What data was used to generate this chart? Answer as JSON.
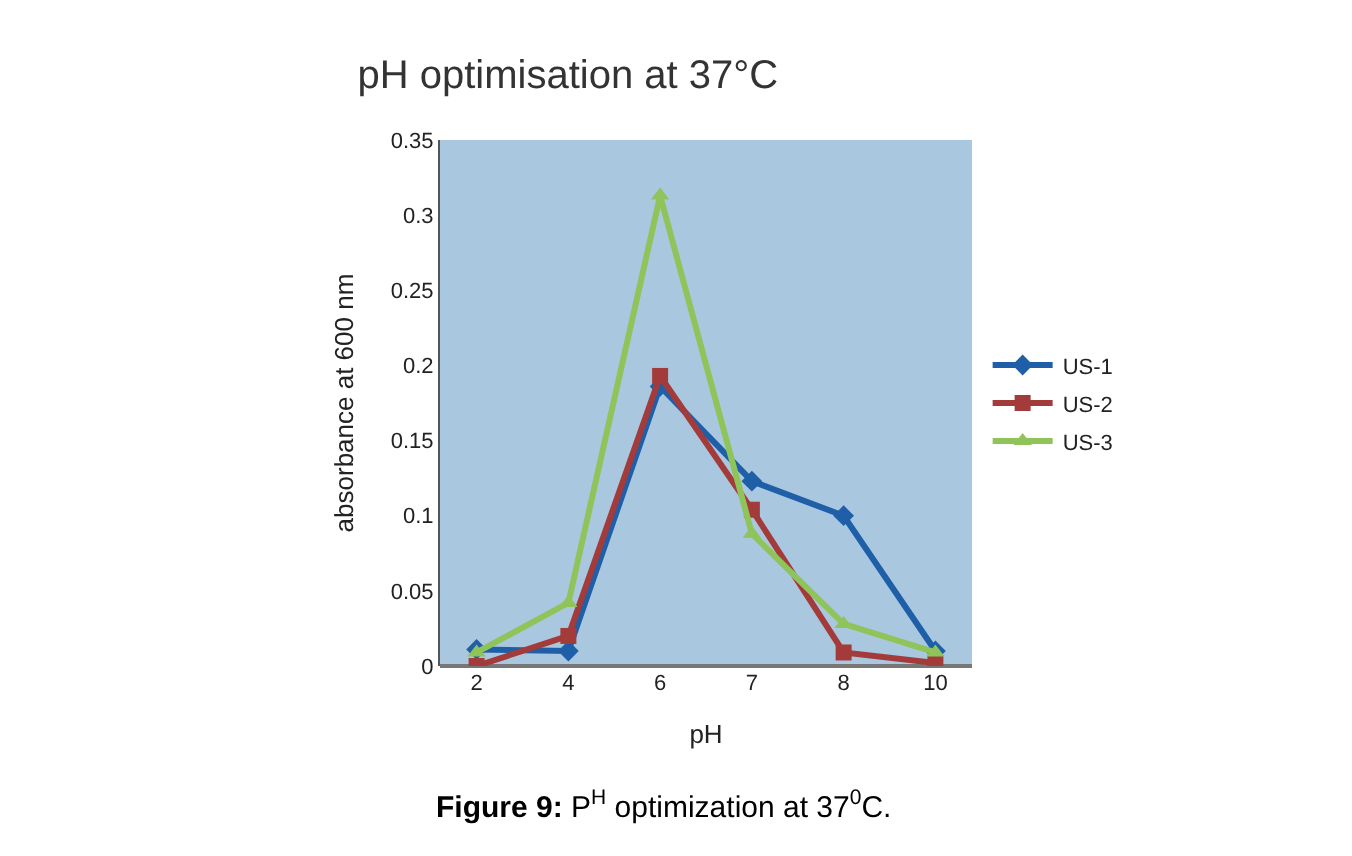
{
  "chart_data": {
    "type": "line",
    "title": "pH optimisation at 37°C",
    "xlabel": "pH",
    "ylabel": "absorbance at 600 nm",
    "categories": [
      "2",
      "4",
      "6",
      "7",
      "8",
      "10"
    ],
    "series": [
      {
        "name": "US-1",
        "color": "#1f5fa8",
        "marker": "diamond",
        "values": [
          0.011,
          0.01,
          0.186,
          0.123,
          0.1,
          0.01
        ]
      },
      {
        "name": "US-2",
        "color": "#a33b3b",
        "marker": "square",
        "values": [
          0,
          0.02,
          0.193,
          0.104,
          0.009,
          0.002
        ]
      },
      {
        "name": "US-3",
        "color": "#8fc45a",
        "marker": "triangle",
        "values": [
          0.009,
          0.042,
          0.313,
          0.088,
          0.028,
          0.009
        ]
      }
    ],
    "ylim": [
      0,
      0.35
    ],
    "yticks": [
      0,
      0.05,
      0.1,
      0.15,
      0.2,
      0.25,
      0.3,
      0.35
    ],
    "grid": false,
    "legend": "right",
    "annotations": [
      "**Figure 9:** P$^{H}$ optimization at 37$^{0}$C."
    ]
  }
}
